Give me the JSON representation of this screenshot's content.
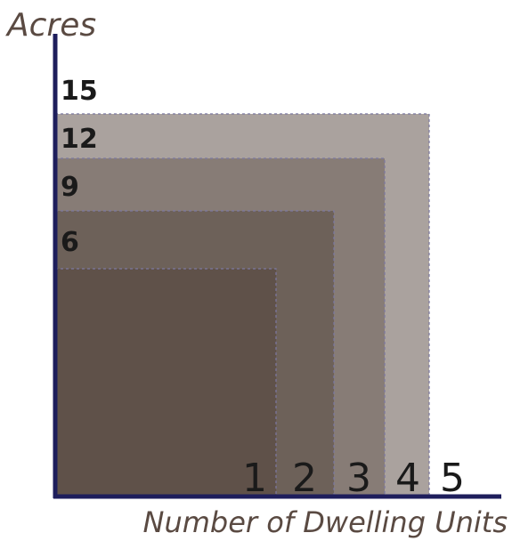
{
  "y_axis": {
    "title": "Acres",
    "labels": [
      "15",
      "12",
      "9",
      "6"
    ]
  },
  "x_axis": {
    "title": "Number of Dwelling Units",
    "labels": [
      "1",
      "2",
      "3",
      "4",
      "5"
    ]
  }
}
